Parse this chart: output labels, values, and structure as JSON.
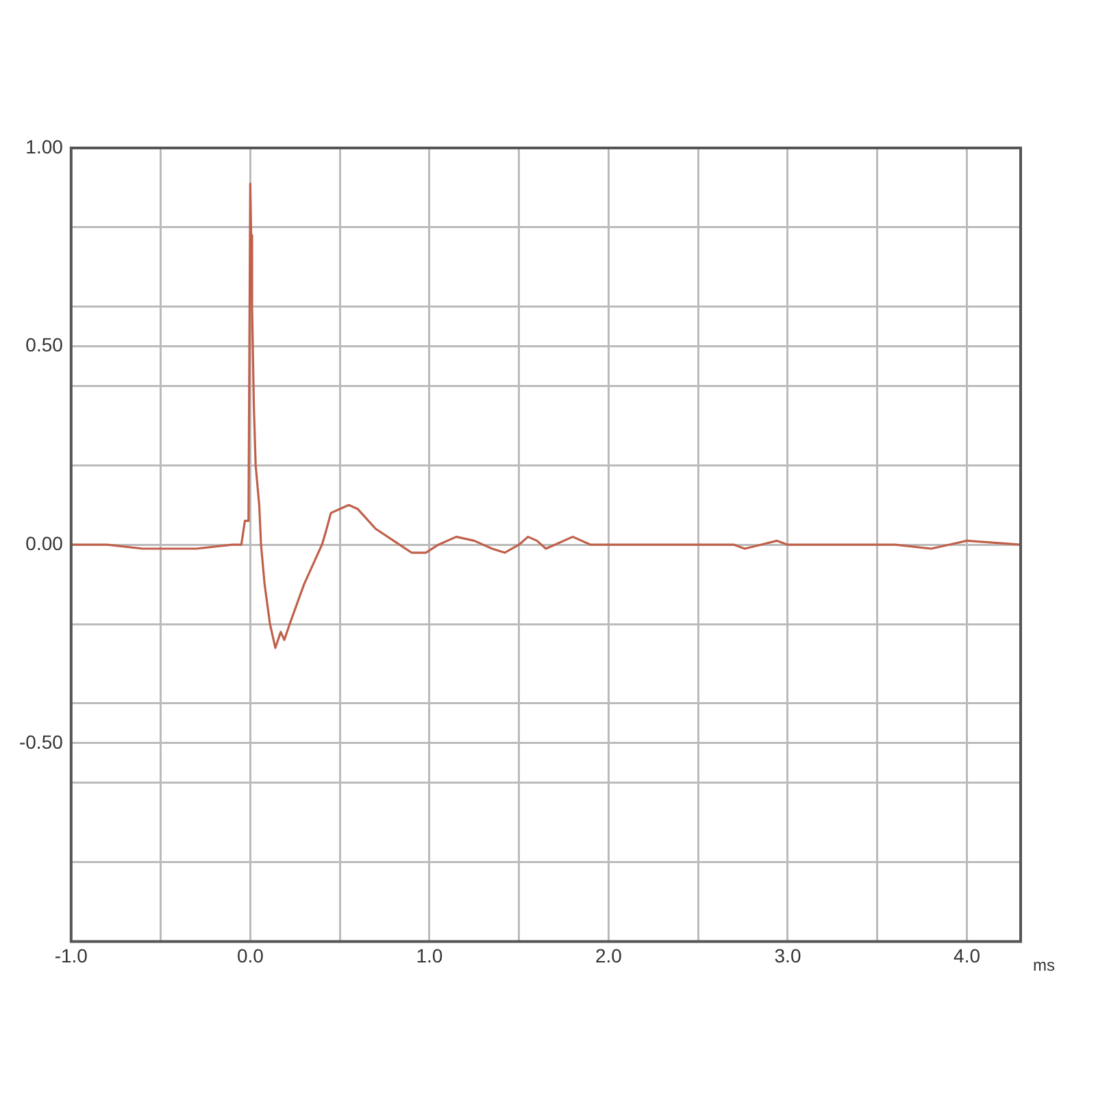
{
  "chart_data": {
    "type": "line",
    "xlabel": "ms",
    "xlim": [
      -1,
      4.3
    ],
    "ylim": [
      -1,
      1
    ],
    "xticks": [
      {
        "value": -1,
        "label": "-1.0"
      },
      {
        "value": -0.5,
        "label": null
      },
      {
        "value": 0,
        "label": "0.0"
      },
      {
        "value": 0.5,
        "label": null
      },
      {
        "value": 1,
        "label": "1.0"
      },
      {
        "value": 1.5,
        "label": null
      },
      {
        "value": 2,
        "label": "2.0"
      },
      {
        "value": 2.5,
        "label": null
      },
      {
        "value": 3,
        "label": "3.0"
      },
      {
        "value": 3.5,
        "label": null
      },
      {
        "value": 4,
        "label": "4.0"
      }
    ],
    "yticks": [
      {
        "value": 1,
        "label": "1.00"
      },
      {
        "value": 0.8,
        "label": null
      },
      {
        "value": 0.6,
        "label": null
      },
      {
        "value": 0.5,
        "label": "0.50"
      },
      {
        "value": 0.4,
        "label": null
      },
      {
        "value": 0.2,
        "label": null
      },
      {
        "value": 0,
        "label": "0.00"
      },
      {
        "value": -0.2,
        "label": null
      },
      {
        "value": -0.4,
        "label": null
      },
      {
        "value": -0.5,
        "label": "-0.50"
      },
      {
        "value": -0.6,
        "label": null
      },
      {
        "value": -0.8,
        "label": null
      }
    ],
    "grid": true,
    "legend": false,
    "marker": "none",
    "line_style": "solid",
    "series": [
      {
        "color": "#c0604a",
        "x": [
          -1,
          -0.8,
          -0.6,
          -0.5,
          -0.3,
          -0.1,
          -0.05,
          -0.03,
          -0.01,
          0,
          0.005,
          0.01,
          0.02,
          0.03,
          0.05,
          0.06,
          0.08,
          0.11,
          0.14,
          0.17,
          0.19,
          0.22,
          0.26,
          0.3,
          0.35,
          0.4,
          0.42,
          0.45,
          0.5,
          0.55,
          0.6,
          0.62,
          0.7,
          0.8,
          0.9,
          0.98,
          1.05,
          1.15,
          1.25,
          1.35,
          1.42,
          1.5,
          1.55,
          1.6,
          1.65,
          1.7,
          1.8,
          1.9,
          2.0,
          2.3,
          2.6,
          2.7,
          2.76,
          2.85,
          2.94,
          3.0,
          3.3,
          3.6,
          3.8,
          3.9,
          4.0,
          4.3
        ],
        "values": [
          0,
          0,
          -0.01,
          -0.01,
          -0.01,
          0,
          0,
          0.06,
          0.06,
          0.91,
          0.78,
          0.6,
          0.35,
          0.2,
          0.1,
          0,
          -0.1,
          -0.2,
          -0.26,
          -0.22,
          -0.24,
          -0.2,
          -0.15,
          -0.1,
          -0.05,
          0,
          0.03,
          0.08,
          0.09,
          0.1,
          0.09,
          0.08,
          0.04,
          0.01,
          -0.02,
          -0.02,
          0,
          0.02,
          0.01,
          -0.01,
          -0.02,
          0,
          0.02,
          0.01,
          -0.01,
          0,
          0.02,
          0,
          0,
          0,
          0,
          0,
          -0.01,
          0,
          0.01,
          0,
          0,
          0,
          -0.01,
          0,
          0.01,
          0
        ]
      }
    ]
  }
}
